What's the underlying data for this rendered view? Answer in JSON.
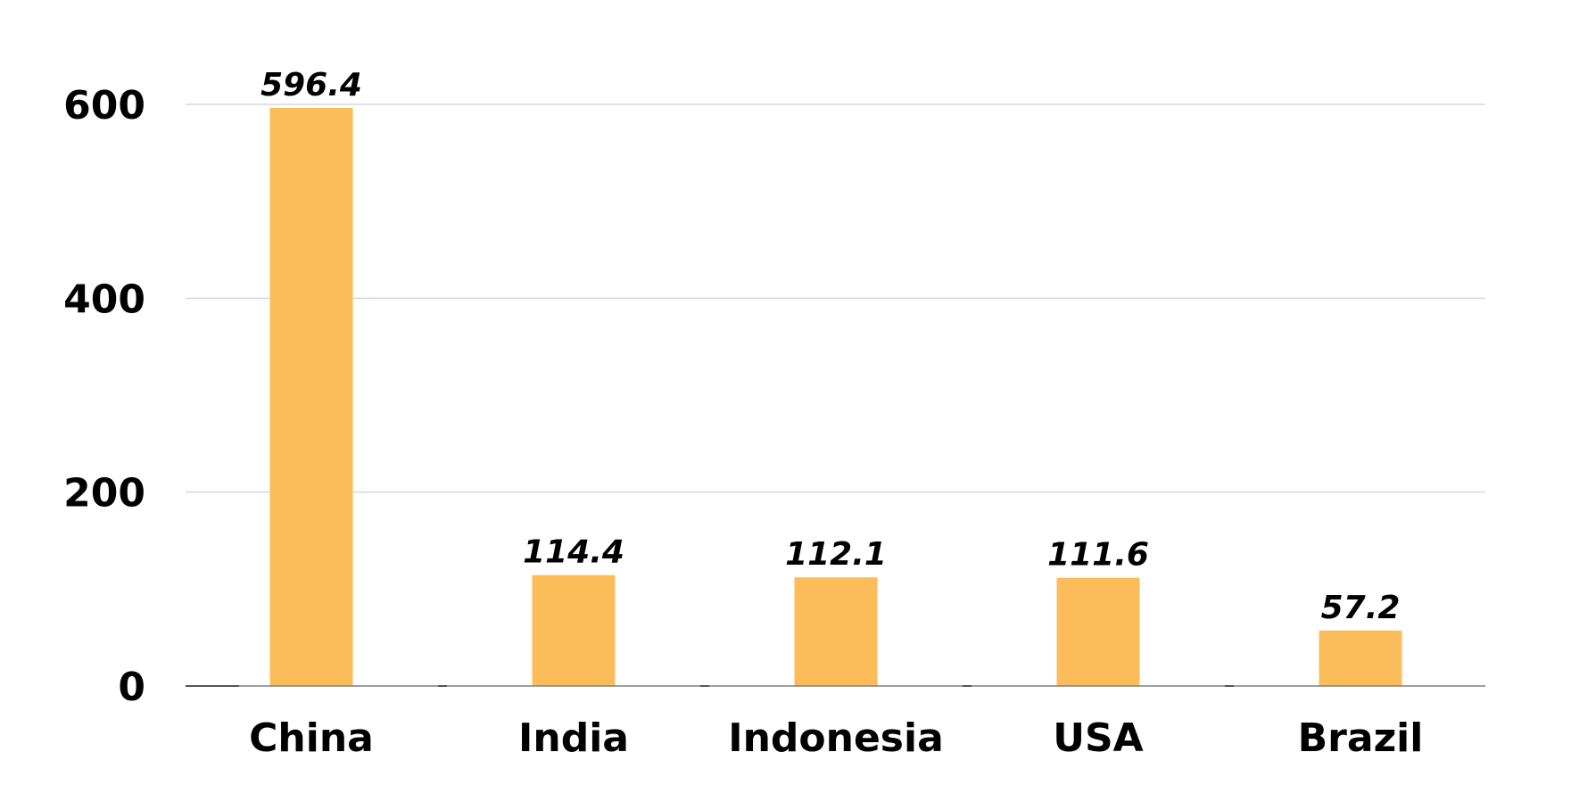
{
  "chart_data": {
    "type": "bar",
    "categories": [
      "China",
      "India",
      "Indonesia",
      "USA",
      "Brazil"
    ],
    "values": [
      596.4,
      114.4,
      112.1,
      111.6,
      57.2
    ],
    "value_labels": [
      "596.4",
      "114.4",
      "112.1",
      "111.6",
      "57.2"
    ],
    "title": "",
    "xlabel": "",
    "ylabel": "",
    "ylim": [
      0,
      600
    ],
    "yticks": [
      0,
      200,
      400,
      600
    ],
    "ytick_labels": [
      "0",
      "200",
      "400",
      "600"
    ],
    "grid": true,
    "legend": "none",
    "colors": {
      "bar": "#FDBC5A",
      "grid": "#D9D9D9",
      "axis": "#7F7F7F",
      "text": "#000000"
    }
  }
}
